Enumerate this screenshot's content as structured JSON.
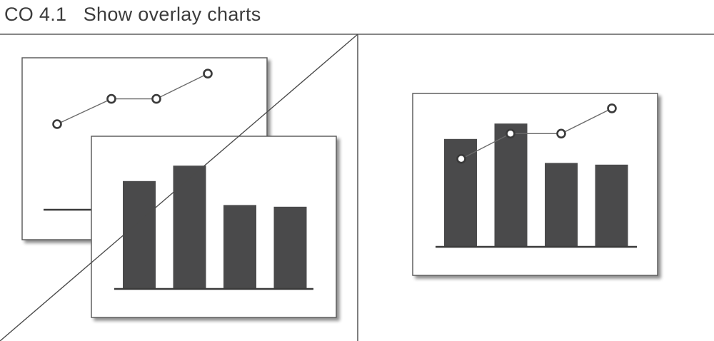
{
  "header": {
    "title": "CO 4.1   Show overlay charts"
  },
  "colors": {
    "bar_fill": "#4a4a4b",
    "line_stroke": "#6a6a6a",
    "frame_stroke": "#555555",
    "divider": "#5e5e5e",
    "text": "#3c3c3c"
  },
  "panels": [
    {
      "name": "separate-charts",
      "line_chart": {
        "type": "line",
        "values": [
          2.0,
          5.0,
          5.0,
          8.0
        ],
        "marker": "hollow-circle"
      },
      "bar_chart": {
        "type": "bar",
        "values": [
          6.3,
          7.2,
          4.9,
          4.8
        ]
      }
    },
    {
      "name": "overlay-chart",
      "chart": {
        "type": "bar+line",
        "bar_values": [
          6.3,
          7.2,
          4.9,
          4.8
        ],
        "line_values": [
          2.0,
          5.0,
          5.0,
          8.0
        ],
        "marker": "hollow-circle"
      }
    }
  ]
}
